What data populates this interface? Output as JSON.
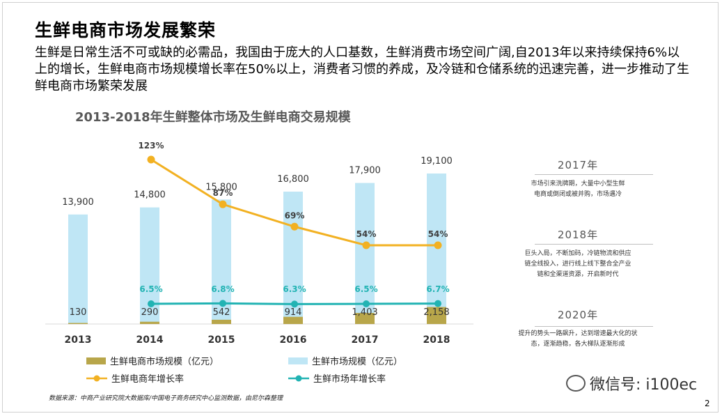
{
  "title": "生鲜电商市场发展繁荣",
  "intro": "生鲜是日常生活不可或缺的必需品，我国由于庞大的人口基数，生鲜消费市场空间广阔,自2013年以来持续保持6%以上的增长，生鲜电商市场规模增长率在50%以上，消费者习惯的养成，及冷链和仓储系统的迅速完善，进一步推动了生鲜电商市场繁荣发展",
  "colors": {
    "total_bar": "#bfe6f5",
    "ecom_bar": "#b8a64a",
    "ecom_growth_line": "#f2b122",
    "total_growth_line": "#22b3b3",
    "axis": "#d9d9d9"
  },
  "chart_data": {
    "type": "bar",
    "title": "2013-2018年生鲜整体市场及生鲜电商交易规模",
    "categories": [
      "2013",
      "2014",
      "2015",
      "2016",
      "2017",
      "2018"
    ],
    "series": [
      {
        "name": "生鲜市场规模（亿元）",
        "kind": "bar",
        "values": [
          13900,
          14800,
          15800,
          16800,
          17900,
          19100
        ],
        "labels": [
          "13,900",
          "14,800",
          "15,800",
          "16,800",
          "17,900",
          "19,100"
        ]
      },
      {
        "name": "生鲜电商市场规模（亿元）",
        "kind": "bar",
        "values": [
          130,
          290,
          542,
          914,
          1403,
          2158
        ],
        "labels": [
          "130",
          "290",
          "542",
          "914",
          "1,403",
          "2,158"
        ]
      },
      {
        "name": "生鲜电商年增长率",
        "kind": "line",
        "values": [
          null,
          123,
          87,
          69,
          54,
          54
        ],
        "labels": [
          "",
          "123%",
          "87%",
          "69%",
          "54%",
          "54%"
        ]
      },
      {
        "name": "生鲜市场年增长率",
        "kind": "line",
        "values": [
          null,
          6.5,
          6.8,
          6.3,
          6.5,
          6.7
        ],
        "labels": [
          "",
          "6.5%",
          "6.8%",
          "6.3%",
          "6.5%",
          "6.7%"
        ]
      }
    ],
    "legend": [
      "生鲜电商市场规模（亿元）",
      "生鲜市场规模（亿元）",
      "生鲜电商年增长率",
      "生鲜市场年增长率"
    ],
    "legend_position": "bottom",
    "grid": false
  },
  "side_notes": [
    {
      "year": "2017年",
      "text": "市场引来洗牌期，大量中小型生鲜电商或倒闭或被并购，市场遇冷"
    },
    {
      "year": "2018年",
      "text": "巨头入局，不断加码，冷链物流和供应链全线投入，进行线上线下整合全产业链和全渠道资源，开启新时代"
    },
    {
      "year": "2020年",
      "text": "提升的势头一路飙升，达到增速最大化的状态，逐渐趋稳，各大梯队逐渐形成"
    }
  ],
  "source": "数据来源：中商产业研究院大数据库/中国电子商务研究中心监测数据，由尼尔森整理",
  "watermark": "微信号: i100ec",
  "page_number": "2"
}
